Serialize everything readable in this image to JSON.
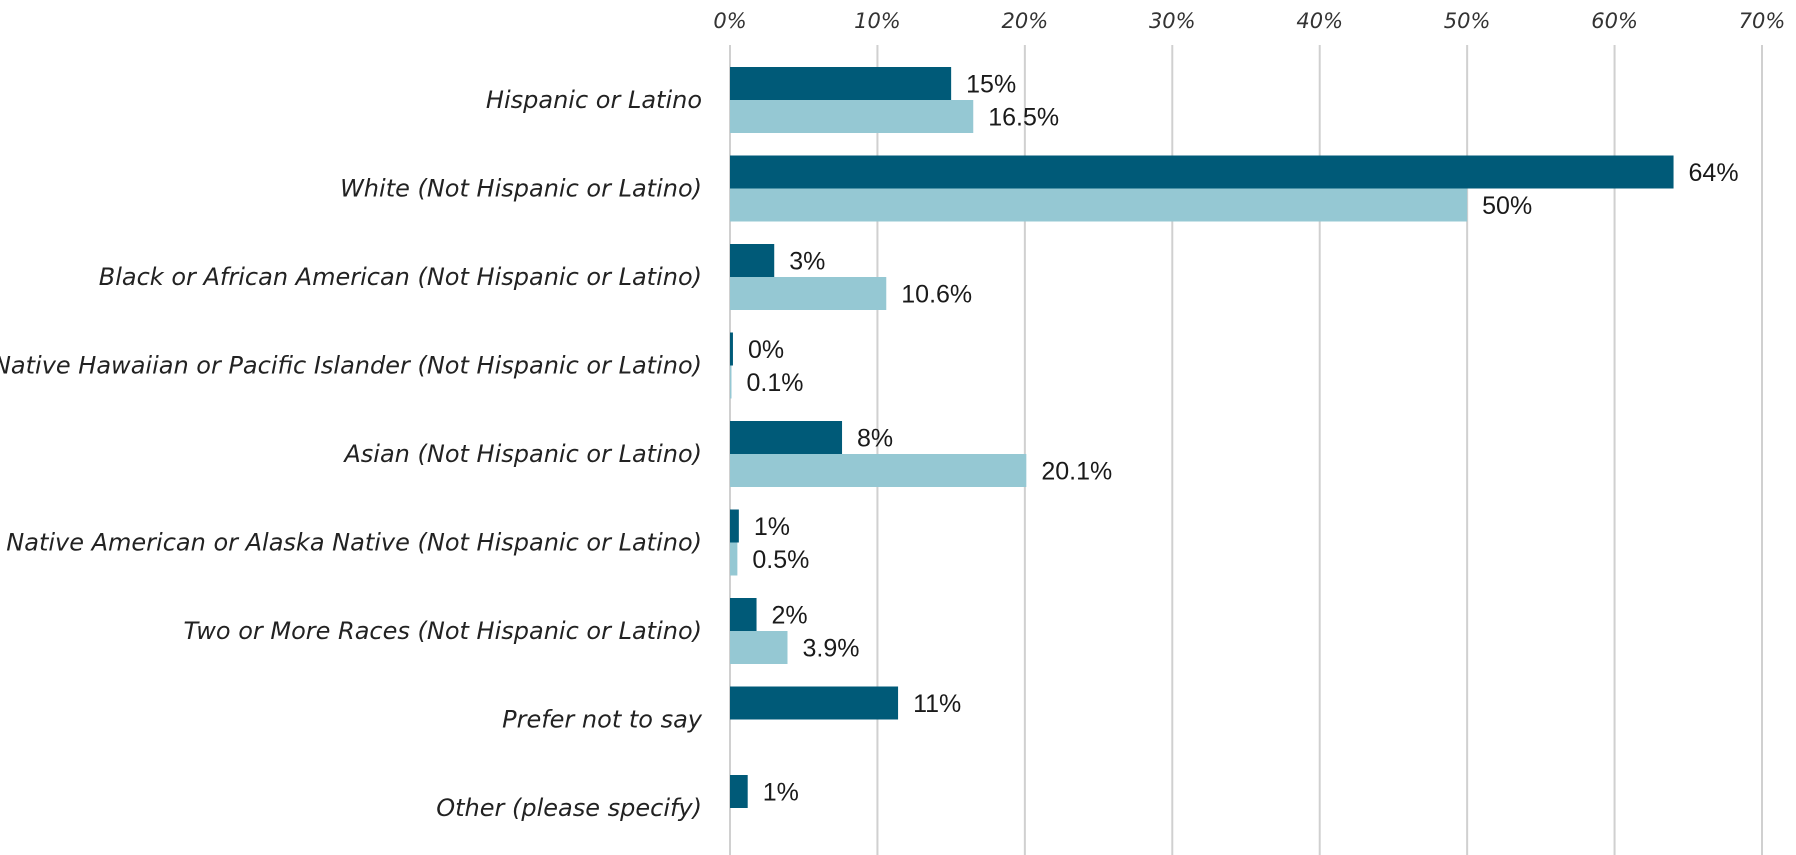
{
  "chart_data": {
    "type": "bar",
    "orientation": "horizontal",
    "categories": [
      "Hispanic or Latino",
      "White (Not Hispanic or Latino)",
      "Black or African American (Not Hispanic or Latino)",
      "Native Hawaiian or Pacific Islander (Not Hispanic or Latino)",
      "Asian (Not Hispanic or Latino)",
      "Native American or Alaska Native (Not Hispanic or Latino)",
      "Two or More Races (Not Hispanic or Latino)",
      "Prefer not to say",
      "Other (please specify)"
    ],
    "series": [
      {
        "color": "#005a78",
        "values": [
          15,
          64,
          3,
          0.2,
          7.6,
          0.6,
          1.8,
          11.4,
          1.2
        ],
        "labels": [
          "15%",
          "64%",
          "3%",
          "0%",
          "8%",
          "1%",
          "2%",
          "11%",
          "1%"
        ]
      },
      {
        "color": "#95c8d3",
        "values": [
          16.5,
          50,
          10.6,
          0.1,
          20.1,
          0.5,
          3.9,
          null,
          null
        ],
        "labels": [
          "16.5%",
          "50%",
          "10.6%",
          "0.1%",
          "20.1%",
          "0.5%",
          "3.9%",
          null,
          null
        ]
      }
    ],
    "xlim": [
      0,
      70
    ],
    "xticks": [
      "0%",
      "10%",
      "20%",
      "30%",
      "40%",
      "50%",
      "60%",
      "70%"
    ],
    "axis_position": "top",
    "grid": true,
    "legend": "none"
  }
}
